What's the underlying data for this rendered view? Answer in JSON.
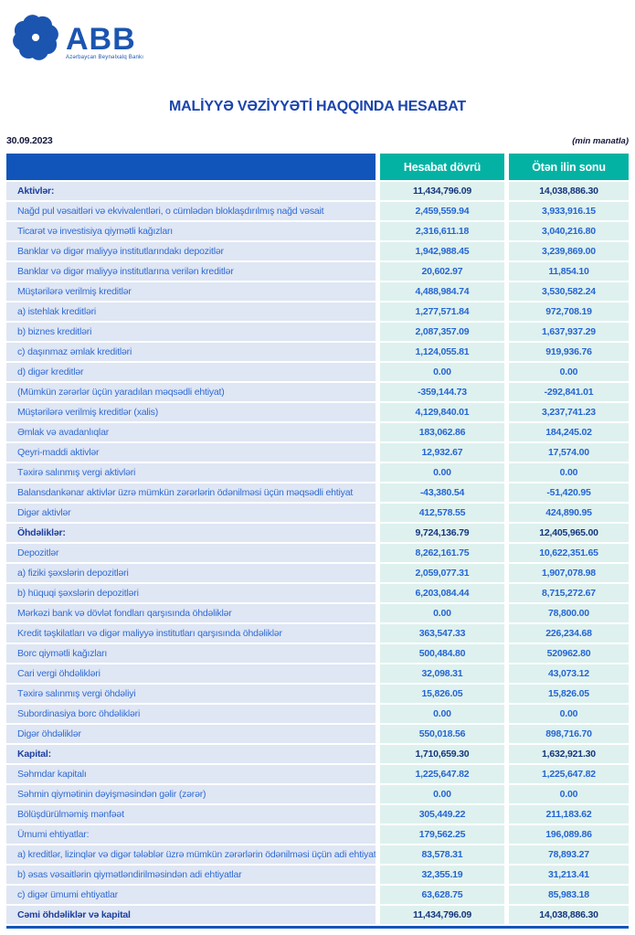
{
  "logo": {
    "text": "ABB",
    "subtitle": "Azərbaycan Beynəlxalq Bankı"
  },
  "title": "MALİYYƏ VƏZİYYƏTİ HAQQINDA HESABAT",
  "report_date": "30.09.2023",
  "unit_note": "(min manatla)",
  "colors": {
    "header_blue": "#1155bb",
    "header_teal": "#04b2a3",
    "label_cell_bg": "#dfe6f4",
    "value_cell_bg": "#def1ee",
    "regular_text_blue": "#2f6bd3",
    "bold_text_navy": "#1c3f9e",
    "title_blue": "#1b44ad",
    "logo_blue": "#1b55b0"
  },
  "table": {
    "columns": [
      "Hesabat dövrü",
      "Ötən ilin sonu"
    ],
    "rows": [
      {
        "label": "Aktivlər:",
        "current": "11,434,796.09",
        "previous": "14,038,886.30",
        "bold": true
      },
      {
        "label": "Nağd pul vəsaitləri və  ekvivalentləri, o cümlədən bloklaşdırılmış nağd vəsait",
        "current": "2,459,559.94",
        "previous": "3,933,916.15",
        "bold": false
      },
      {
        "label": "Ticarət və investisiya qiymətli kağızları",
        "current": "2,316,611.18",
        "previous": "3,040,216.80",
        "bold": false
      },
      {
        "label": "Banklar və digər maliyyə institutlarındakı depozitlər",
        "current": "1,942,988.45",
        "previous": "3,239,869.00",
        "bold": false
      },
      {
        "label": "Banklar və digər maliyyə institutlarına verilən kreditlər",
        "current": "20,602.97",
        "previous": "11,854.10",
        "bold": false
      },
      {
        "label": "Müştərilərə verilmiş kreditlər",
        "current": "4,488,984.74",
        "previous": "3,530,582.24",
        "bold": false
      },
      {
        "label": "a) istehlak kreditləri",
        "current": "1,277,571.84",
        "previous": "972,708.19",
        "bold": false
      },
      {
        "label": "b) biznes kreditləri",
        "current": "2,087,357.09",
        "previous": "1,637,937.29",
        "bold": false
      },
      {
        "label": "c) daşınmaz əmlak kreditləri",
        "current": "1,124,055.81",
        "previous": "919,936.76",
        "bold": false
      },
      {
        "label": "d) digər kreditlər",
        "current": "0.00",
        "previous": "0.00",
        "bold": false
      },
      {
        "label": "(Mümkün zərərlər üçün yaradılan məqsədli ehtiyat)",
        "current": "-359,144.73",
        "previous": "-292,841.01",
        "bold": false
      },
      {
        "label": "Müştərilərə verilmiş kreditlər (xalis)",
        "current": "4,129,840.01",
        "previous": "3,237,741.23",
        "bold": false
      },
      {
        "label": "Əmlak və avadanlıqlar",
        "current": "183,062.86",
        "previous": "184,245.02",
        "bold": false
      },
      {
        "label": "Qeyri-maddi aktivlər",
        "current": "12,932.67",
        "previous": "17,574.00",
        "bold": false
      },
      {
        "label": "Təxirə salınmış vergi aktivləri",
        "current": "0.00",
        "previous": "0.00",
        "bold": false
      },
      {
        "label": "Balansdankənar aktivlər üzrə mümkün zərərlərin ödənilməsi üçün məqsədli ehtiyat",
        "current": "-43,380.54",
        "previous": "-51,420.95",
        "bold": false
      },
      {
        "label": "Digər aktivlər",
        "current": "412,578.55",
        "previous": "424,890.95",
        "bold": false
      },
      {
        "label": "Öhdəliklər:",
        "current": "9,724,136.79",
        "previous": "12,405,965.00",
        "bold": true
      },
      {
        "label": "Depozitlər",
        "current": "8,262,161.75",
        "previous": "10,622,351.65",
        "bold": false
      },
      {
        "label": "a) fiziki şəxslərin depozitləri",
        "current": "2,059,077.31",
        "previous": "1,907,078.98",
        "bold": false
      },
      {
        "label": "b) hüquqi şəxslərin depozitləri",
        "current": "6,203,084.44",
        "previous": "8,715,272.67",
        "bold": false
      },
      {
        "label": "Mərkəzi bank və dövlət fondları qarşısında öhdəliklər",
        "current": "0.00",
        "previous": "78,800.00",
        "bold": false
      },
      {
        "label": "Kredit təşkilatları və digər maliyyə institutları qarşısında öhdəliklər",
        "current": "363,547.33",
        "previous": "226,234.68",
        "bold": false
      },
      {
        "label": "Borc qiymətli kağızları",
        "current": "500,484.80",
        "previous": "520962.80",
        "bold": false
      },
      {
        "label": "Cari vergi öhdəlikləri",
        "current": "32,098.31",
        "previous": "43,073.12",
        "bold": false
      },
      {
        "label": "Təxirə salınmış vergi öhdəliyi",
        "current": "15,826.05",
        "previous": "15,826.05",
        "bold": false
      },
      {
        "label": "Subordinasiya borc öhdəlikləri",
        "current": "0.00",
        "previous": "0.00",
        "bold": false
      },
      {
        "label": "Digər öhdəliklər",
        "current": "550,018.56",
        "previous": "898,716.70",
        "bold": false
      },
      {
        "label": "Kapital:",
        "current": "1,710,659.30",
        "previous": "1,632,921.30",
        "bold": true
      },
      {
        "label": "Səhmdar kapitalı",
        "current": "1,225,647.82",
        "previous": "1,225,647.82",
        "bold": false
      },
      {
        "label": "Səhmin qiymətinin dəyişməsindən gəlir (zərər)",
        "current": "0.00",
        "previous": "0.00",
        "bold": false
      },
      {
        "label": "Bölüşdürülməmiş mənfəət",
        "current": "305,449.22",
        "previous": "211,183.62",
        "bold": false
      },
      {
        "label": "Ümumi ehtiyatlar:",
        "current": "179,562.25",
        "previous": "196,089.86",
        "bold": false
      },
      {
        "label": "a) kreditlər, lizinqlər və digər tələblər üzrə mümkün zərərlərin ödənilməsi üçün adi ehtiyatlar",
        "current": "83,578.31",
        "previous": "78,893.27",
        "bold": false
      },
      {
        "label": "b) əsas vəsaitlərin qiymətləndirilməsindən adi ehtiyatlar",
        "current": "32,355.19",
        "previous": "31,213.41",
        "bold": false
      },
      {
        "label": "c) digər ümumi ehtiyatlar",
        "current": "63,628.75",
        "previous": "85,983.18",
        "bold": false
      },
      {
        "label": "Cəmi öhdəliklər və kapital",
        "current": "11,434,796.09",
        "previous": "14,038,886.30",
        "bold": true
      }
    ]
  }
}
